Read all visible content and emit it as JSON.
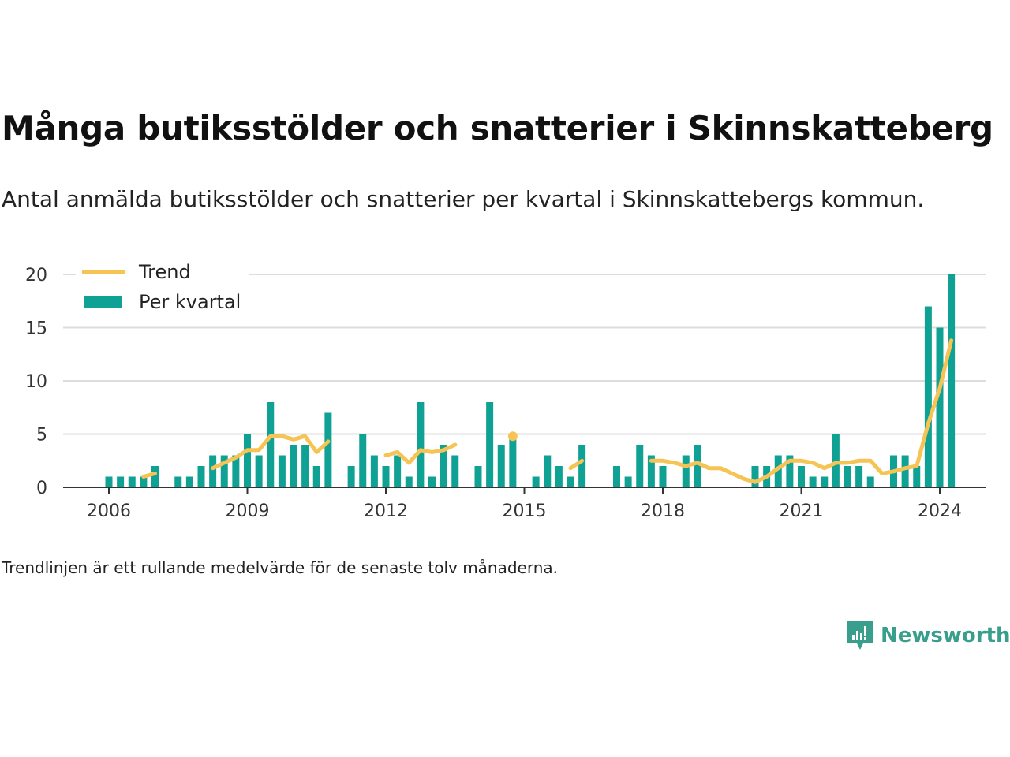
{
  "title": "Många butiksstölder och snatterier i Skinnskatteberg",
  "subtitle": "Antal anmälda butiksstölder och snatterier per kvartal i Skinnskattebergs kommun.",
  "footnote": "Trendlinjen är ett rullande medelvärde för de senaste tolv månaderna.",
  "brand": {
    "name": "Newsworthy",
    "icon": "newsworthy-logo-icon",
    "color": "#3a9e8c"
  },
  "colors": {
    "bar": "#10a195",
    "trend": "#f6c454",
    "grid": "#dddddd",
    "axis": "#333333"
  },
  "chart_data": {
    "type": "bar",
    "x_unit": "quarter",
    "legend": {
      "placement": "top-left",
      "entries": [
        "Trend",
        "Per kvartal"
      ]
    },
    "ylim": [
      0,
      20
    ],
    "yticks": [
      0,
      5,
      10,
      15,
      20
    ],
    "xticks": [
      2006,
      2009,
      2012,
      2015,
      2018,
      2021,
      2024
    ],
    "grid": true,
    "series": [
      {
        "name": "Per kvartal",
        "type": "bar",
        "values": [
          [
            2006.0,
            1
          ],
          [
            2006.25,
            1
          ],
          [
            2006.5,
            1
          ],
          [
            2006.75,
            1
          ],
          [
            2007.0,
            2
          ],
          [
            2007.5,
            1
          ],
          [
            2007.75,
            1
          ],
          [
            2008.0,
            2
          ],
          [
            2008.25,
            3
          ],
          [
            2008.5,
            3
          ],
          [
            2008.75,
            3
          ],
          [
            2009.0,
            5
          ],
          [
            2009.25,
            3
          ],
          [
            2009.5,
            8
          ],
          [
            2009.75,
            3
          ],
          [
            2010.0,
            4
          ],
          [
            2010.25,
            4
          ],
          [
            2010.5,
            2
          ],
          [
            2010.75,
            7
          ],
          [
            2011.25,
            2
          ],
          [
            2011.5,
            5
          ],
          [
            2011.75,
            3
          ],
          [
            2012.0,
            2
          ],
          [
            2012.25,
            3
          ],
          [
            2012.5,
            1
          ],
          [
            2012.75,
            8
          ],
          [
            2013.0,
            1
          ],
          [
            2013.25,
            4
          ],
          [
            2013.5,
            3
          ],
          [
            2014.0,
            2
          ],
          [
            2014.25,
            8
          ],
          [
            2014.5,
            4
          ],
          [
            2014.75,
            5
          ],
          [
            2015.25,
            1
          ],
          [
            2015.5,
            3
          ],
          [
            2015.75,
            2
          ],
          [
            2016.0,
            1
          ],
          [
            2016.25,
            4
          ],
          [
            2017.0,
            2
          ],
          [
            2017.25,
            1
          ],
          [
            2017.5,
            4
          ],
          [
            2017.75,
            3
          ],
          [
            2018.0,
            2
          ],
          [
            2018.5,
            3
          ],
          [
            2018.75,
            4
          ],
          [
            2020.0,
            2
          ],
          [
            2020.25,
            2
          ],
          [
            2020.5,
            3
          ],
          [
            2020.75,
            3
          ],
          [
            2021.0,
            2
          ],
          [
            2021.25,
            1
          ],
          [
            2021.5,
            1
          ],
          [
            2021.75,
            5
          ],
          [
            2022.0,
            2
          ],
          [
            2022.25,
            2
          ],
          [
            2022.5,
            1
          ],
          [
            2023.0,
            3
          ],
          [
            2023.25,
            3
          ],
          [
            2023.5,
            2
          ],
          [
            2023.75,
            17
          ],
          [
            2024.0,
            15
          ],
          [
            2024.25,
            20
          ]
        ]
      },
      {
        "name": "Trend",
        "type": "line",
        "segments": [
          [
            [
              2006.75,
              1.0
            ],
            [
              2007.0,
              1.3
            ]
          ],
          [
            [
              2008.25,
              1.8
            ],
            [
              2008.5,
              2.3
            ],
            [
              2008.75,
              2.8
            ],
            [
              2009.0,
              3.5
            ],
            [
              2009.25,
              3.5
            ],
            [
              2009.5,
              4.8
            ],
            [
              2009.75,
              4.8
            ],
            [
              2010.0,
              4.5
            ],
            [
              2010.25,
              4.8
            ],
            [
              2010.5,
              3.3
            ],
            [
              2010.75,
              4.3
            ]
          ],
          [
            [
              2012.0,
              3.0
            ],
            [
              2012.25,
              3.3
            ],
            [
              2012.5,
              2.3
            ],
            [
              2012.75,
              3.5
            ],
            [
              2013.0,
              3.3
            ],
            [
              2013.25,
              3.5
            ],
            [
              2013.5,
              4.0
            ]
          ],
          [
            [
              2014.75,
              4.8
            ]
          ],
          [
            [
              2016.0,
              1.8
            ],
            [
              2016.25,
              2.5
            ]
          ],
          [
            [
              2017.75,
              2.5
            ],
            [
              2018.0,
              2.5
            ],
            [
              2018.25,
              2.3
            ],
            [
              2018.5,
              2.0
            ],
            [
              2018.75,
              2.3
            ],
            [
              2019.0,
              1.8
            ],
            [
              2019.25,
              1.8
            ],
            [
              2019.5,
              1.3
            ],
            [
              2019.75,
              0.8
            ],
            [
              2020.0,
              0.5
            ],
            [
              2020.25,
              1.0
            ],
            [
              2020.5,
              1.8
            ],
            [
              2020.75,
              2.5
            ],
            [
              2021.0,
              2.5
            ],
            [
              2021.25,
              2.3
            ],
            [
              2021.5,
              1.8
            ],
            [
              2021.75,
              2.3
            ],
            [
              2022.0,
              2.3
            ],
            [
              2022.25,
              2.5
            ],
            [
              2022.5,
              2.5
            ],
            [
              2022.75,
              1.3
            ],
            [
              2023.0,
              1.5
            ],
            [
              2023.25,
              1.8
            ],
            [
              2023.5,
              2.0
            ],
            [
              2023.75,
              6.0
            ],
            [
              2024.0,
              9.3
            ],
            [
              2024.25,
              13.8
            ]
          ]
        ]
      }
    ]
  }
}
